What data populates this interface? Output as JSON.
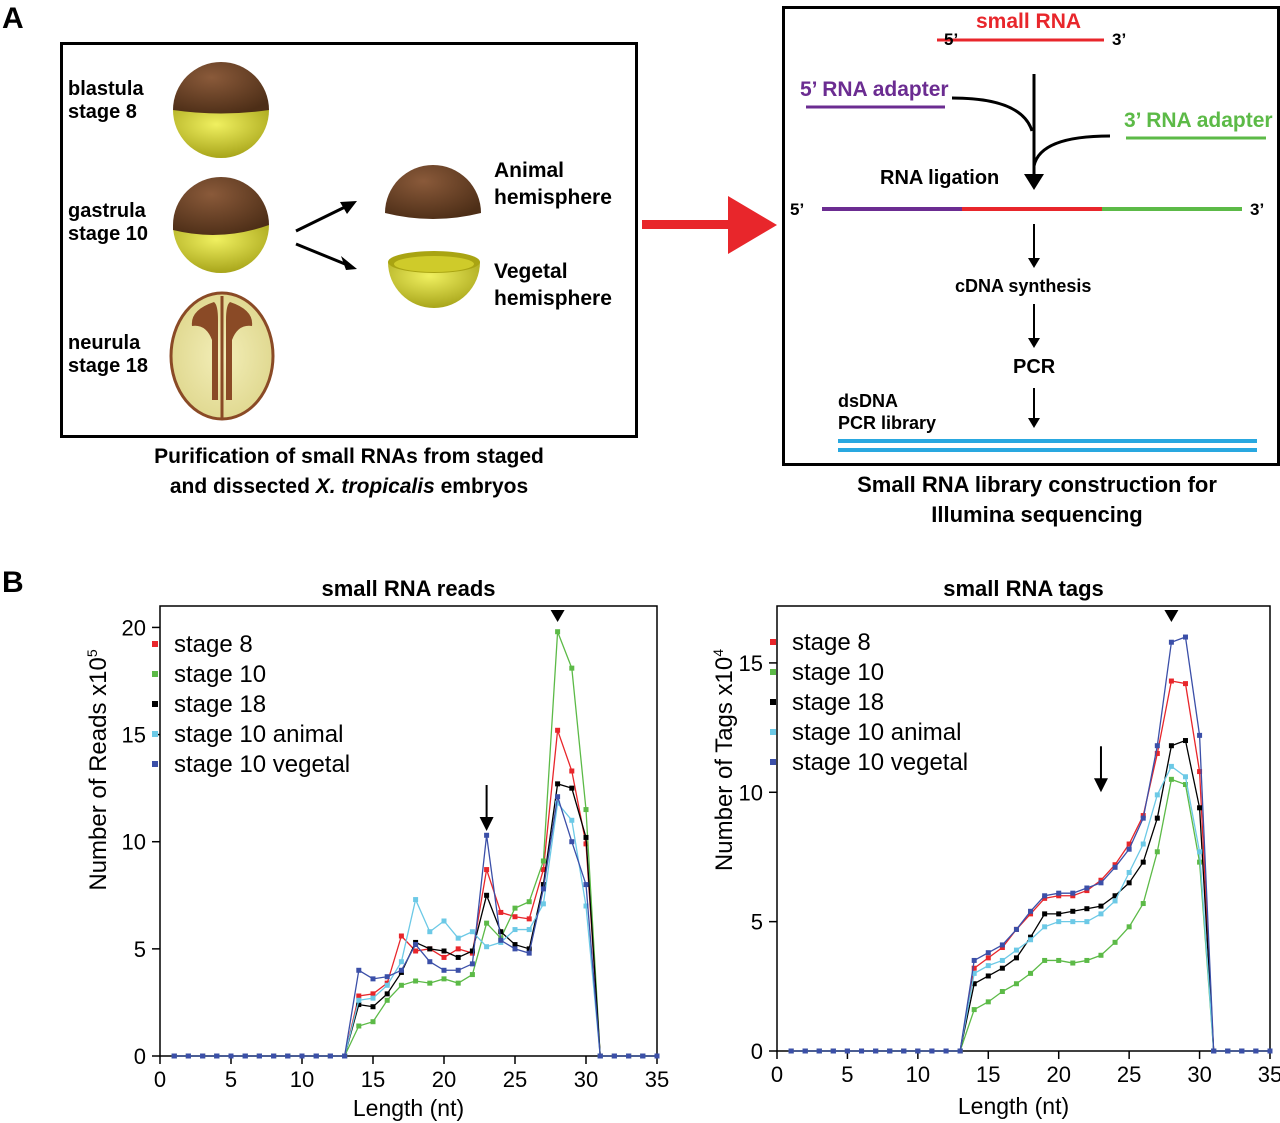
{
  "panels": {
    "a": "A",
    "b": "B"
  },
  "panel_a_left": {
    "stages": [
      {
        "name": "blastula",
        "stage": "stage 8"
      },
      {
        "name": "gastrula",
        "stage": "stage 10"
      },
      {
        "name": "neurula",
        "stage": "stage 18"
      }
    ],
    "animal": [
      "Animal",
      "hemisphere"
    ],
    "vegetal": [
      "Vegetal",
      "hemisphere"
    ],
    "caption_line1": "Purification of small RNAs from staged",
    "caption_line2_pre": "and dissected ",
    "caption_line2_ital": "X. tropicalis",
    "caption_line2_post": " embryos"
  },
  "panel_a_right": {
    "small_rna": "small RNA",
    "five_prime": "5’",
    "three_prime": "3’",
    "adapter5": "5’ RNA adapter",
    "adapter3": "3’ RNA adapter",
    "ligation": "RNA ligation",
    "cdna": "cDNA synthesis",
    "pcr": "PCR",
    "dsdna": "dsDNA",
    "pcr_library": "PCR library",
    "caption_line1": "Small RNA library construction for",
    "caption_line2": "Illumina sequencing"
  },
  "colors": {
    "red": "#e8262b",
    "green": "#5cba47",
    "black": "#000000",
    "cyan": "#6cc9e6",
    "blue": "#3b4fa8",
    "purple": "#6b2c91",
    "dna_blue": "#29a8e0"
  },
  "chart_data": [
    {
      "type": "line",
      "title": "small RNA reads",
      "xlabel": "Length (nt)",
      "ylabel": "Number of Reads x10",
      "ylabel_exp": "5",
      "xlim": [
        0,
        35
      ],
      "ylim": [
        0,
        21
      ],
      "xticks": [
        0,
        5,
        10,
        15,
        20,
        25,
        30,
        35
      ],
      "yticks": [
        0,
        5,
        10,
        15,
        20
      ],
      "marker_triangle_x": 28,
      "marker_arrow_x": 23,
      "x": [
        1,
        2,
        3,
        4,
        5,
        6,
        7,
        8,
        9,
        10,
        11,
        12,
        13,
        14,
        15,
        16,
        17,
        18,
        19,
        20,
        21,
        22,
        23,
        24,
        25,
        26,
        27,
        28,
        29,
        30,
        31,
        32,
        33,
        34,
        35
      ],
      "series": [
        {
          "name": "stage 8",
          "color": "#e8262b",
          "values": [
            0,
            0,
            0,
            0,
            0,
            0,
            0,
            0,
            0,
            0,
            0,
            0,
            0,
            2.8,
            2.9,
            3.4,
            5.6,
            4.9,
            5.0,
            4.6,
            5.0,
            4.8,
            8.7,
            6.7,
            6.5,
            6.4,
            8.7,
            15.2,
            13.3,
            9.9,
            0,
            0,
            0,
            0,
            0
          ]
        },
        {
          "name": "stage 10",
          "color": "#5cba47",
          "values": [
            0,
            0,
            0,
            0,
            0,
            0,
            0,
            0,
            0,
            0,
            0,
            0,
            0,
            1.4,
            1.6,
            2.6,
            3.3,
            3.5,
            3.4,
            3.6,
            3.4,
            3.8,
            6.2,
            5.5,
            6.9,
            7.2,
            9.1,
            19.8,
            18.1,
            11.5,
            0,
            0,
            0,
            0,
            0
          ]
        },
        {
          "name": "stage 18",
          "color": "#000000",
          "values": [
            0,
            0,
            0,
            0,
            0,
            0,
            0,
            0,
            0,
            0,
            0,
            0,
            0,
            2.4,
            2.3,
            2.9,
            3.9,
            5.3,
            5.0,
            4.9,
            4.6,
            4.9,
            7.5,
            5.8,
            5.2,
            5.0,
            8.0,
            12.7,
            12.5,
            10.2,
            0,
            0,
            0,
            0,
            0
          ]
        },
        {
          "name": "stage 10 animal",
          "color": "#6cc9e6",
          "values": [
            0,
            0,
            0,
            0,
            0,
            0,
            0,
            0,
            0,
            0,
            0,
            0,
            0,
            2.6,
            2.7,
            3.3,
            4.4,
            7.3,
            5.8,
            6.3,
            5.5,
            5.8,
            5.1,
            5.3,
            5.9,
            5.9,
            7.1,
            11.8,
            11.0,
            7.0,
            0,
            0,
            0,
            0,
            0
          ]
        },
        {
          "name": "stage 10 vegetal",
          "color": "#3b4fa8",
          "values": [
            0,
            0,
            0,
            0,
            0,
            0,
            0,
            0,
            0,
            0,
            0,
            0,
            0,
            4.0,
            3.6,
            3.7,
            4.0,
            5.2,
            4.4,
            4.0,
            4.0,
            4.3,
            10.3,
            5.4,
            5.0,
            4.8,
            7.8,
            12.1,
            10.0,
            8.0,
            0,
            0,
            0,
            0,
            0
          ]
        }
      ]
    },
    {
      "type": "line",
      "title": "small RNA tags",
      "xlabel": "Length (nt)",
      "ylabel": "Number of Tags x10",
      "ylabel_exp": "4",
      "xlim": [
        0,
        35
      ],
      "ylim": [
        0,
        17.2
      ],
      "xticks": [
        0,
        5,
        10,
        15,
        20,
        25,
        30,
        35
      ],
      "yticks": [
        0,
        5,
        10,
        15
      ],
      "marker_triangle_x": 28,
      "marker_arrow_x": 23,
      "x": [
        1,
        2,
        3,
        4,
        5,
        6,
        7,
        8,
        9,
        10,
        11,
        12,
        13,
        14,
        15,
        16,
        17,
        18,
        19,
        20,
        21,
        22,
        23,
        24,
        25,
        26,
        27,
        28,
        29,
        30,
        31,
        32,
        33,
        34,
        35
      ],
      "series": [
        {
          "name": "stage 8",
          "color": "#e8262b",
          "values": [
            0,
            0,
            0,
            0,
            0,
            0,
            0,
            0,
            0,
            0,
            0,
            0,
            0,
            3.2,
            3.6,
            4.0,
            4.7,
            5.3,
            5.9,
            6.0,
            6.0,
            6.2,
            6.6,
            7.2,
            8.0,
            9.1,
            11.5,
            14.3,
            14.2,
            10.8,
            0,
            0,
            0,
            0,
            0
          ]
        },
        {
          "name": "stage 10",
          "color": "#5cba47",
          "values": [
            0,
            0,
            0,
            0,
            0,
            0,
            0,
            0,
            0,
            0,
            0,
            0,
            0,
            1.6,
            1.9,
            2.3,
            2.6,
            3.0,
            3.5,
            3.5,
            3.4,
            3.5,
            3.7,
            4.2,
            4.8,
            5.7,
            7.7,
            10.5,
            10.3,
            7.3,
            0,
            0,
            0,
            0,
            0
          ]
        },
        {
          "name": "stage 18",
          "color": "#000000",
          "values": [
            0,
            0,
            0,
            0,
            0,
            0,
            0,
            0,
            0,
            0,
            0,
            0,
            0,
            2.6,
            2.9,
            3.2,
            3.6,
            4.4,
            5.3,
            5.3,
            5.4,
            5.5,
            5.6,
            6.0,
            6.5,
            7.3,
            9.0,
            11.8,
            12.0,
            9.4,
            0,
            0,
            0,
            0,
            0
          ]
        },
        {
          "name": "stage 10 animal",
          "color": "#6cc9e6",
          "values": [
            0,
            0,
            0,
            0,
            0,
            0,
            0,
            0,
            0,
            0,
            0,
            0,
            0,
            3.0,
            3.3,
            3.5,
            3.9,
            4.3,
            4.8,
            5.0,
            5.0,
            5.0,
            5.3,
            5.8,
            6.9,
            8.0,
            9.9,
            11.0,
            10.6,
            7.7,
            0,
            0,
            0,
            0,
            0
          ]
        },
        {
          "name": "stage 10 vegetal",
          "color": "#3b4fa8",
          "values": [
            0,
            0,
            0,
            0,
            0,
            0,
            0,
            0,
            0,
            0,
            0,
            0,
            0,
            3.5,
            3.8,
            4.1,
            4.7,
            5.4,
            6.0,
            6.1,
            6.1,
            6.3,
            6.5,
            7.1,
            7.8,
            9.0,
            11.8,
            15.8,
            16.0,
            12.2,
            0,
            0,
            0,
            0,
            0
          ]
        }
      ]
    }
  ]
}
